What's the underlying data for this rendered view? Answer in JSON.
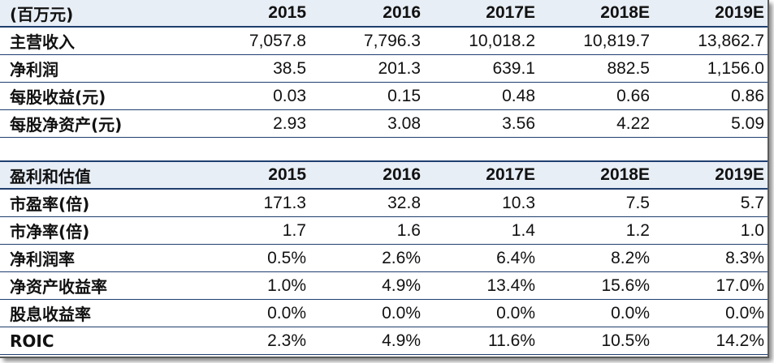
{
  "table1": {
    "header": {
      "label": "(百万元)",
      "years": [
        "2015",
        "2016",
        "2017E",
        "2018E",
        "2019E"
      ]
    },
    "rows": [
      {
        "label": "主营收入",
        "values": [
          "7,057.8",
          "7,796.3",
          "10,018.2",
          "10,819.7",
          "13,862.7"
        ]
      },
      {
        "label": "净利润",
        "values": [
          "38.5",
          "201.3",
          "639.1",
          "882.5",
          "1,156.0"
        ]
      },
      {
        "label": "每股收益(元)",
        "values": [
          "0.03",
          "0.15",
          "0.48",
          "0.66",
          "0.86"
        ]
      },
      {
        "label": "每股净资产(元)",
        "values": [
          "2.93",
          "3.08",
          "3.56",
          "4.22",
          "5.09"
        ]
      }
    ]
  },
  "table2": {
    "header": {
      "label": "盈利和估值",
      "years": [
        "2015",
        "2016",
        "2017E",
        "2018E",
        "2019E"
      ]
    },
    "rows": [
      {
        "label": "市盈率(倍)",
        "values": [
          "171.3",
          "32.8",
          "10.3",
          "7.5",
          "5.7"
        ]
      },
      {
        "label": "市净率(倍)",
        "values": [
          "1.7",
          "1.6",
          "1.4",
          "1.2",
          "1.0"
        ]
      },
      {
        "label": "净利润率",
        "values": [
          "0.5%",
          "2.6%",
          "6.4%",
          "8.2%",
          "8.3%"
        ]
      },
      {
        "label": "净资产收益率",
        "values": [
          "1.0%",
          "4.9%",
          "13.4%",
          "15.6%",
          "17.0%"
        ]
      },
      {
        "label": "股息收益率",
        "values": [
          "0.0%",
          "0.0%",
          "0.0%",
          "0.0%",
          "0.0%"
        ]
      },
      {
        "label": "ROIC",
        "values": [
          "2.3%",
          "4.9%",
          "11.6%",
          "10.5%",
          "14.2%"
        ]
      }
    ]
  },
  "colors": {
    "header_bg": "#e8eef6",
    "rule": "#1f3f6e"
  }
}
